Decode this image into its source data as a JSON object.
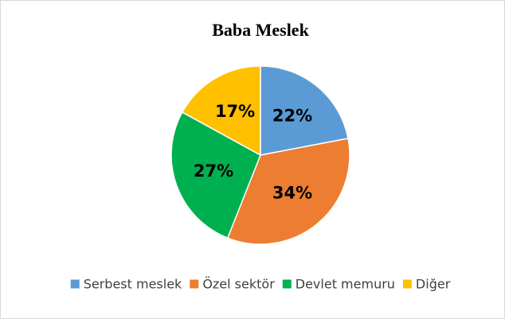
{
  "chart_data": {
    "type": "pie",
    "title": "Baba Meslek",
    "categories": [
      "Serbest meslek",
      "Özel sektör",
      "Devlet memuru",
      "Diğer"
    ],
    "values": [
      22,
      34,
      27,
      17
    ],
    "value_labels": [
      "22%",
      "34%",
      "27%",
      "17%"
    ],
    "colors": [
      "#5b9bd5",
      "#ed7d31",
      "#00b050",
      "#ffc000"
    ],
    "legend": "bottom"
  }
}
